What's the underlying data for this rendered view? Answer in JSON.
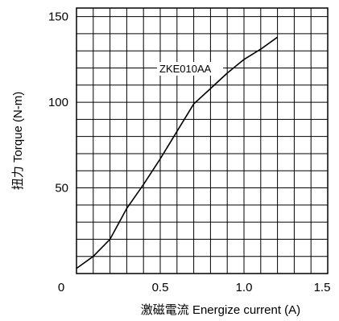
{
  "chart_data": {
    "type": "line",
    "title": "",
    "xlabel": "激磁電流 Energize current (A)",
    "ylabel": "扭力 Torque (N-m)",
    "xlim": [
      0,
      1.5
    ],
    "ylim": [
      0,
      155
    ],
    "x_ticks": [
      0,
      0.5,
      1.0,
      1.5
    ],
    "x_tick_labels": [
      "0",
      "0.5",
      "1.0",
      "1.5"
    ],
    "y_ticks": [
      50,
      100,
      150
    ],
    "y_tick_labels": [
      "50",
      "100",
      "150"
    ],
    "grid": true,
    "grid_minor_x_step": 0.1,
    "grid_minor_y_step": 10,
    "series": [
      {
        "name": "ZKE010AA",
        "color": "#000000",
        "x": [
          0,
          0.1,
          0.2,
          0.3,
          0.4,
          0.5,
          0.6,
          0.7,
          0.8,
          0.9,
          1.0,
          1.1,
          1.2
        ],
        "y": [
          3,
          10,
          20,
          38,
          52,
          67,
          83,
          99,
          108,
          117,
          125,
          131,
          138
        ]
      }
    ]
  }
}
